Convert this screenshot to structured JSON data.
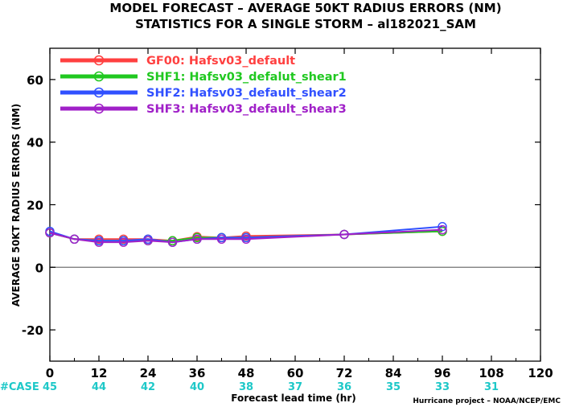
{
  "title_line1": "MODEL FORECAST – AVERAGE 50KT RADIUS ERRORS (NM)",
  "title_line2": "STATISTICS FOR A SINGLE STORM – al182021_SAM",
  "case_label": "#CASE",
  "credit": "Hurricane project – NOAA/NCEP/EMC",
  "colors": {
    "zero_line": "#808080",
    "case_text": "#1ec8c8"
  },
  "chart_data": {
    "type": "line",
    "xlabel": "Forecast lead time (hr)",
    "ylabel": "AVERAGE 50KT RADIUS ERRORS (NM)",
    "xlim": [
      0,
      120
    ],
    "ylim": [
      -30,
      70
    ],
    "xticks": [
      0,
      12,
      24,
      36,
      48,
      60,
      72,
      84,
      96,
      108,
      120
    ],
    "yticks": [
      -20,
      0,
      20,
      40,
      60
    ],
    "grid": false,
    "legend_position": "top-left",
    "cases": [
      {
        "x": 0,
        "n": "45"
      },
      {
        "x": 12,
        "n": "44"
      },
      {
        "x": 24,
        "n": "42"
      },
      {
        "x": 36,
        "n": "40"
      },
      {
        "x": 48,
        "n": "38"
      },
      {
        "x": 60,
        "n": "37"
      },
      {
        "x": 72,
        "n": "36"
      },
      {
        "x": 84,
        "n": "35"
      },
      {
        "x": 96,
        "n": "33"
      },
      {
        "x": 108,
        "n": "31"
      }
    ],
    "series": [
      {
        "name": "GF00: Hafsv03_default",
        "color": "#ff4040",
        "x": [
          0,
          6,
          12,
          18,
          24,
          30,
          36,
          42,
          48,
          72,
          96
        ],
        "y": [
          11,
          9,
          9,
          9,
          9,
          8.5,
          9.8,
          9.5,
          10,
          10.5,
          11.5
        ]
      },
      {
        "name": "SHF1: Hafsv03_defalut_shear1",
        "color": "#20c820",
        "x": [
          0,
          6,
          12,
          18,
          24,
          30,
          36,
          42,
          48,
          72,
          96
        ],
        "y": [
          11,
          9,
          8.5,
          8.5,
          8.5,
          8.5,
          9.5,
          9.5,
          9.5,
          10.5,
          11.5
        ]
      },
      {
        "name": "SHF2: Hafsv03_default_shear2",
        "color": "#3050ff",
        "x": [
          0,
          6,
          12,
          18,
          24,
          30,
          36,
          42,
          48,
          72,
          96
        ],
        "y": [
          11.5,
          9,
          8.5,
          8.5,
          9,
          8,
          9,
          9.5,
          9.5,
          10.5,
          13
        ]
      },
      {
        "name": "SHF3: Hafsv03_default_shear3",
        "color": "#a020c8",
        "x": [
          0,
          6,
          12,
          18,
          24,
          30,
          36,
          42,
          48,
          72,
          96
        ],
        "y": [
          11,
          9,
          8,
          8,
          8.5,
          8,
          9,
          9,
          9,
          10.5,
          12
        ]
      }
    ]
  }
}
